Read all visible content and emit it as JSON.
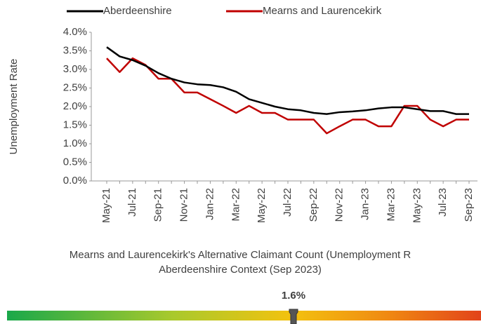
{
  "chart_data": {
    "type": "line",
    "y_axis_label": "Unemployment Rate",
    "categories": [
      "May-21",
      null,
      "Jul-21",
      null,
      "Sep-21",
      null,
      "Nov-21",
      null,
      "Jan-22",
      null,
      "Mar-22",
      null,
      "May-22",
      null,
      "Jul-22",
      null,
      "Sep-22",
      null,
      "Nov-22",
      null,
      "Jan-23",
      null,
      "Mar-23",
      null,
      "May-23",
      null,
      "Jul-23",
      null,
      "Sep-23"
    ],
    "series": [
      {
        "name": "Aberdeenshire",
        "color": "#000000",
        "values": [
          3.6,
          3.35,
          3.25,
          3.1,
          2.9,
          2.75,
          2.65,
          2.6,
          2.58,
          2.52,
          2.4,
          2.2,
          2.1,
          2.0,
          1.93,
          1.9,
          1.83,
          1.8,
          1.85,
          1.87,
          1.9,
          1.95,
          1.98,
          1.98,
          1.93,
          1.88,
          1.88,
          1.8,
          1.8
        ]
      },
      {
        "name": "Mearns and Laurencekirk",
        "color": "#c00000",
        "values": [
          3.3,
          2.93,
          3.3,
          3.12,
          2.75,
          2.75,
          2.38,
          2.38,
          2.2,
          2.02,
          1.83,
          2.02,
          1.83,
          1.83,
          1.65,
          1.65,
          1.65,
          1.28,
          1.47,
          1.65,
          1.65,
          1.47,
          1.47,
          2.02,
          2.02,
          1.65,
          1.47,
          1.65,
          1.65
        ]
      }
    ],
    "ylim": [
      0,
      4
    ],
    "yticks": [
      {
        "value": 0,
        "label": "0.0%"
      },
      {
        "value": 0.5,
        "label": "0.5%"
      },
      {
        "value": 1,
        "label": "1.0%"
      },
      {
        "value": 1.5,
        "label": "1.5%"
      },
      {
        "value": 2,
        "label": "2.0%"
      },
      {
        "value": 2.5,
        "label": "2.5%"
      },
      {
        "value": 3,
        "label": "3.0%"
      },
      {
        "value": 3.5,
        "label": "3.5%"
      },
      {
        "value": 4,
        "label": "4.0%"
      }
    ],
    "caption": [
      "Mearns and Laurencekirk's Alternative Claimant Count (Unemployment R",
      "Aberdeenshire Context (Sep 2023)"
    ],
    "gauge_label": "1.6%"
  }
}
